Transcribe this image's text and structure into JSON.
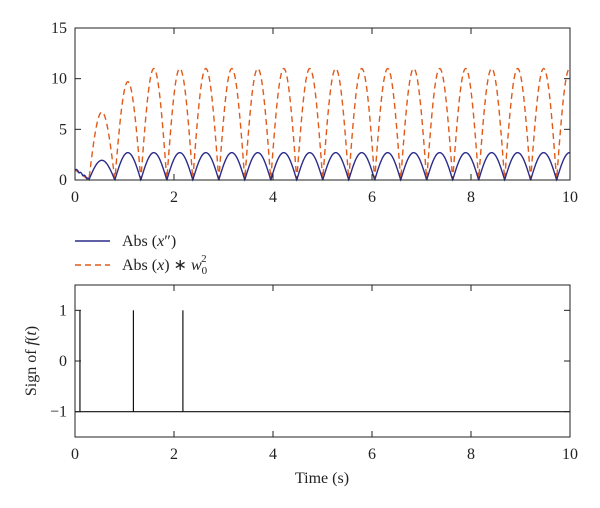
{
  "chart_data": [
    {
      "type": "line",
      "xlim": [
        0,
        10
      ],
      "ylim": [
        0,
        15
      ],
      "x_ticks": [
        "0",
        "2",
        "4",
        "6",
        "8",
        "10"
      ],
      "y_ticks": [
        "0",
        "5",
        "10",
        "15"
      ],
      "xlabel": "",
      "ylabel": "",
      "legend_position": "below",
      "legend": {
        "entry1": {
          "prefix": "Abs (",
          "var": "x",
          "prime": "″",
          "suffix": ")"
        },
        "entry2": {
          "prefix": "Abs (",
          "var": "x",
          "suffix": ") ∗ ",
          "w": "w",
          "sub": "0",
          "sup": "2"
        }
      },
      "series": [
        {
          "name": "Abs (x″)",
          "color": "#2b2b8a",
          "style": "solid",
          "model": {
            "amplitude": 2.7,
            "half_period": 0.525,
            "first_zero": 0.28,
            "initial": 1.0
          }
        },
        {
          "name": "Abs (x) ∗ w0²",
          "color": "#e05a1a",
          "style": "dashed",
          "model": {
            "amplitude": 11.0,
            "half_period": 0.525,
            "first_zero": 0.28,
            "first_peak": 6.7,
            "second_peak": 9.7
          }
        }
      ]
    },
    {
      "type": "line",
      "xlim": [
        0,
        10
      ],
      "ylim": [
        -1.5,
        1.5
      ],
      "x_ticks": [
        "0",
        "2",
        "4",
        "6",
        "8",
        "10"
      ],
      "y_ticks": [
        "1",
        "0",
        "−1"
      ],
      "y_tick_values": [
        1,
        0,
        -1
      ],
      "xlabel": "Time (s)",
      "ylabel": {
        "prefix": "Sign of ",
        "f": "f",
        "mid": "(",
        "t": "t",
        "suffix": ")"
      },
      "series": [
        {
          "name": "sign of f(t)",
          "color": "#111111",
          "baseline": -1,
          "spikes_x": [
            0.1,
            1.18,
            2.18
          ],
          "spike_value": 1
        }
      ]
    }
  ]
}
